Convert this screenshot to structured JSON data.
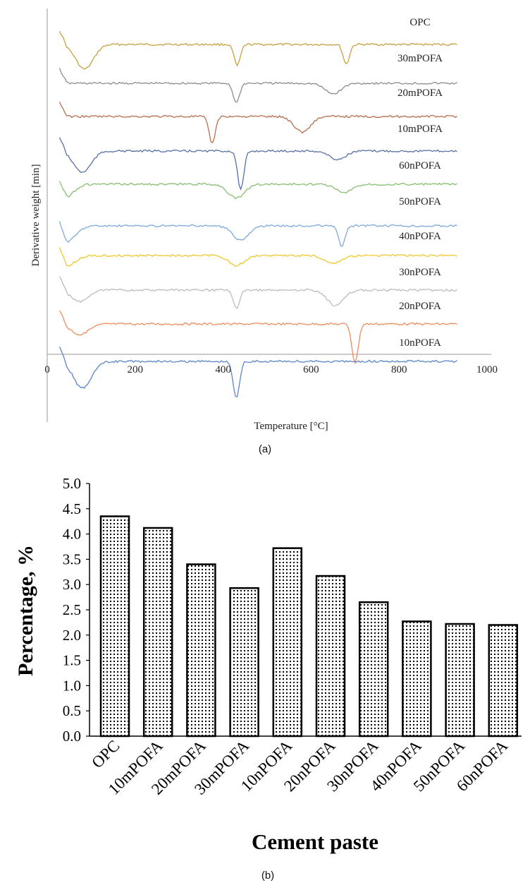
{
  "panel_a": {
    "caption": "(a)",
    "chart_data": {
      "type": "line",
      "xlabel": "Temperature [°C]",
      "ylabel": "Derivative  weight [min]",
      "xlim": [
        0,
        1000
      ],
      "x_ticks": [
        0,
        200,
        400,
        600,
        800,
        1000
      ],
      "grid": false,
      "series_labels": [
        "OPC",
        "30mPOFA",
        "20mPOFA",
        "10mPOFA",
        "60nPOFA",
        "50nPOFA",
        "40nPOFA",
        "30nPOFA",
        "20nPOFA",
        "10nPOFA"
      ],
      "series": [
        {
          "color": "#c8a040",
          "dips": [
            [
              85,
              35
            ],
            [
              432,
              30
            ],
            [
              680,
              28
            ]
          ]
        },
        {
          "color": "#8c8c8c",
          "dips": [
            [
              430,
              28
            ],
            [
              650,
              15
            ]
          ]
        },
        {
          "color": "#b86e4e",
          "dips": [
            [
              375,
              38
            ],
            [
              580,
              22
            ]
          ]
        },
        {
          "color": "#5670a8",
          "dips": [
            [
              80,
              30
            ],
            [
              440,
              55
            ],
            [
              660,
              12
            ]
          ]
        },
        {
          "color": "#88bf70",
          "dips": [
            [
              40,
              18
            ],
            [
              430,
              20
            ],
            [
              675,
              12
            ]
          ]
        },
        {
          "color": "#7ea8dc",
          "dips": [
            [
              45,
              22
            ],
            [
              440,
              20
            ],
            [
              670,
              30
            ]
          ]
        },
        {
          "color": "#f0c830",
          "dips": [
            [
              45,
              14
            ],
            [
              430,
              14
            ],
            [
              650,
              12
            ]
          ]
        },
        {
          "color": "#bcbcbc",
          "dips": [
            [
              75,
              16
            ],
            [
              430,
              26
            ],
            [
              655,
              22
            ]
          ]
        },
        {
          "color": "#ef8c5c",
          "dips": [
            [
              75,
              15
            ],
            [
              700,
              55
            ]
          ]
        },
        {
          "color": "#5a86c8",
          "dips": [
            [
              80,
              38
            ],
            [
              430,
              52
            ]
          ]
        }
      ]
    }
  },
  "panel_b": {
    "caption": "(b)",
    "chart_data": {
      "type": "bar",
      "xlabel": "Cement paste",
      "ylabel": "Percentage, %",
      "ylim": [
        0,
        5
      ],
      "y_ticks": [
        "0.0",
        "0.5",
        "1.0",
        "1.5",
        "2.0",
        "2.5",
        "3.0",
        "3.5",
        "4.0",
        "4.5",
        "5.0"
      ],
      "categories": [
        "OPC",
        "10mPOFA",
        "20mPOFA",
        "30mPOFA",
        "10nPOFA",
        "20nPOFA",
        "30nPOFA",
        "40nPOFA",
        "50nPOFA",
        "60nPOFA"
      ],
      "values": [
        4.35,
        4.12,
        3.4,
        2.93,
        3.72,
        3.17,
        2.65,
        2.27,
        2.22,
        2.2
      ],
      "bar_pattern": "dotted",
      "grid": false
    }
  }
}
